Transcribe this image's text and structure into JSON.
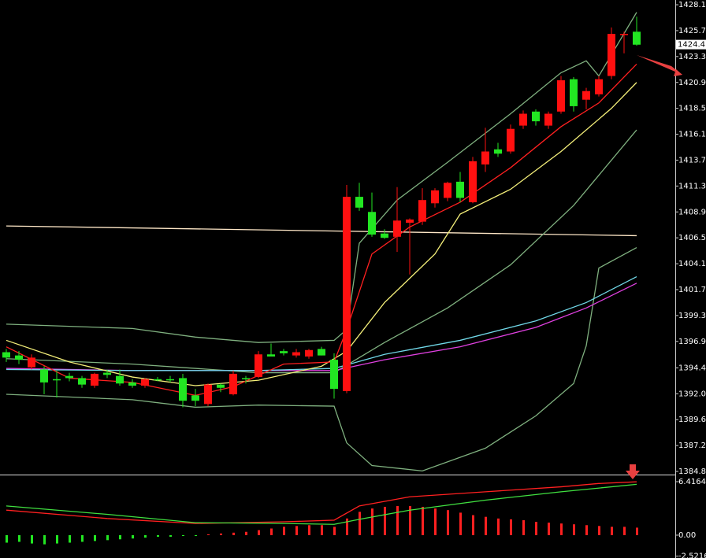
{
  "chart_data": [
    {
      "type": "candlestick",
      "up_color": "#ff1010",
      "down_color": "#22e622",
      "ylim": [
        1384.56,
        1428.54
      ],
      "yticks": [
        {
          "value": 1428.1,
          "label": "1428.10"
        },
        {
          "value": 1425.7,
          "label": "1425.70"
        },
        {
          "value": 1423.3,
          "label": "1423.30"
        },
        {
          "value": 1420.9,
          "label": "1420.90"
        },
        {
          "value": 1418.5,
          "label": "1418.50"
        },
        {
          "value": 1416.1,
          "label": "1416.10"
        },
        {
          "value": 1413.7,
          "label": "1413.70"
        },
        {
          "value": 1411.3,
          "label": "1411.30"
        },
        {
          "value": 1408.9,
          "label": "1408.90"
        },
        {
          "value": 1406.5,
          "label": "1406.50"
        },
        {
          "value": 1404.1,
          "label": "1404.10"
        },
        {
          "value": 1401.7,
          "label": "1401.70"
        },
        {
          "value": 1399.3,
          "label": "1399.30"
        },
        {
          "value": 1396.9,
          "label": "1396.90"
        },
        {
          "value": 1394.45,
          "label": "1394.45"
        },
        {
          "value": 1392.05,
          "label": "1392.05"
        },
        {
          "value": 1389.65,
          "label": "1389.65"
        },
        {
          "value": 1387.25,
          "label": "1387.25"
        },
        {
          "value": 1384.85,
          "label": "1384.85"
        }
      ],
      "last_price": 1424.41,
      "open": [
        1395.9,
        1395.6,
        1394.5,
        1394.3,
        1393.4,
        1393.7,
        1393.5,
        1392.8,
        1394.0,
        1393.7,
        1393.1,
        1392.8,
        1393.4,
        1393.4,
        1393.5,
        1391.9,
        1391.1,
        1392.9,
        1392.0,
        1393.5,
        1393.6,
        1395.7,
        1396.0,
        1395.6,
        1395.5,
        1396.2,
        1395.2,
        1392.3,
        1410.3,
        1408.9,
        1406.9,
        1406.6,
        1407.9,
        1408.0,
        1409.7,
        1410.2,
        1411.7,
        1409.8,
        1413.3,
        1414.7,
        1414.5,
        1416.9,
        1418.2,
        1416.9,
        1418.2,
        1421.2,
        1419.3,
        1419.8,
        1421.5,
        1425.4,
        1425.6
      ],
      "high": [
        1396.2,
        1396.0,
        1395.7,
        1394.6,
        1394.2,
        1394.0,
        1393.7,
        1394.0,
        1394.3,
        1394.3,
        1393.4,
        1393.5,
        1393.6,
        1393.7,
        1393.9,
        1392.5,
        1393.0,
        1393.0,
        1394.2,
        1393.7,
        1396.0,
        1396.7,
        1396.2,
        1396.2,
        1396.2,
        1396.4,
        1395.8,
        1411.4,
        1411.6,
        1410.7,
        1407.3,
        1411.2,
        1408.3,
        1411.1,
        1411.1,
        1411.7,
        1412.6,
        1414.0,
        1416.7,
        1415.3,
        1417.0,
        1418.3,
        1418.4,
        1418.2,
        1421.5,
        1421.4,
        1420.4,
        1421.5,
        1426.0,
        1425.6,
        1427.0
      ],
      "low": [
        1395.0,
        1394.8,
        1394.3,
        1392.0,
        1391.7,
        1393.2,
        1392.6,
        1392.6,
        1393.5,
        1392.8,
        1392.6,
        1392.6,
        1393.2,
        1393.1,
        1390.8,
        1390.9,
        1390.9,
        1392.2,
        1391.9,
        1393.0,
        1393.5,
        1395.5,
        1395.6,
        1395.4,
        1395.3,
        1395.6,
        1391.6,
        1392.1,
        1409.0,
        1406.6,
        1406.4,
        1405.2,
        1403.1,
        1407.7,
        1409.3,
        1409.9,
        1409.8,
        1409.7,
        1412.6,
        1414.0,
        1414.3,
        1416.6,
        1416.9,
        1416.6,
        1418.0,
        1418.2,
        1418.4,
        1419.6,
        1421.2,
        1423.6,
        1424.3
      ],
      "close": [
        1395.4,
        1395.2,
        1395.4,
        1393.1,
        1393.3,
        1393.5,
        1392.9,
        1393.9,
        1393.8,
        1393.0,
        1392.8,
        1393.4,
        1393.3,
        1393.3,
        1391.4,
        1391.4,
        1392.9,
        1392.6,
        1393.9,
        1393.4,
        1395.7,
        1395.5,
        1395.8,
        1395.9,
        1396.1,
        1395.6,
        1392.5,
        1410.3,
        1409.3,
        1406.8,
        1406.5,
        1408.1,
        1408.2,
        1410.0,
        1410.9,
        1411.6,
        1410.2,
        1413.6,
        1414.5,
        1414.3,
        1416.6,
        1418.0,
        1417.3,
        1418.0,
        1421.1,
        1418.7,
        1420.1,
        1421.2,
        1425.4,
        1425.4,
        1424.4
      ],
      "lines": [
        {
          "color": "#ffe8c8",
          "x": [
            0,
            50
          ],
          "values": [
            1407.6,
            1406.7
          ]
        },
        {
          "color": "#7fb07f",
          "x": [
            0,
            10,
            15,
            20,
            26,
            27,
            28,
            31,
            35,
            40,
            44,
            46,
            47,
            50
          ],
          "values": [
            1398.5,
            1398.1,
            1397.3,
            1396.8,
            1397.0,
            1398.0,
            1406.0,
            1410.0,
            1413.5,
            1418.0,
            1421.8,
            1422.9,
            1421.5,
            1427.4
          ]
        },
        {
          "color": "#7fb07f",
          "x": [
            0,
            10,
            20,
            26,
            30,
            35,
            40,
            45,
            50
          ],
          "values": [
            1395.3,
            1394.8,
            1394.0,
            1394.0,
            1396.8,
            1400.0,
            1404.0,
            1409.5,
            1416.5
          ]
        },
        {
          "color": "#7fb07f",
          "x": [
            0,
            10,
            15,
            20,
            26,
            27,
            29,
            33,
            38,
            42,
            45,
            46,
            47,
            50
          ],
          "values": [
            1392.0,
            1391.5,
            1390.8,
            1391.0,
            1390.9,
            1387.5,
            1385.4,
            1384.9,
            1387.0,
            1390.0,
            1393.0,
            1396.5,
            1403.7,
            1405.6
          ]
        },
        {
          "color": "#e040e0",
          "x": [
            0,
            10,
            20,
            26,
            30,
            36,
            42,
            46,
            50
          ],
          "values": [
            1394.4,
            1394.2,
            1394.2,
            1394.2,
            1395.2,
            1396.4,
            1398.2,
            1400.0,
            1402.3
          ]
        },
        {
          "color": "#70d8e8",
          "x": [
            0,
            10,
            20,
            26,
            30,
            36,
            42,
            46,
            50
          ],
          "values": [
            1394.3,
            1394.2,
            1394.2,
            1394.4,
            1395.7,
            1397.0,
            1398.8,
            1400.5,
            1402.9
          ]
        },
        {
          "color": "#f5f07a",
          "x": [
            0,
            5,
            10,
            15,
            20,
            25,
            27,
            30,
            34,
            36,
            40,
            44,
            48,
            50
          ],
          "values": [
            1397.0,
            1395.0,
            1393.6,
            1392.8,
            1393.3,
            1394.6,
            1396.0,
            1400.5,
            1405.0,
            1408.7,
            1411.0,
            1414.5,
            1418.5,
            1420.9
          ]
        },
        {
          "color": "#ff2020",
          "x": [
            0,
            5,
            10,
            15,
            18,
            22,
            26,
            27,
            29,
            32,
            36,
            40,
            44,
            47,
            50
          ],
          "values": [
            1396.4,
            1393.5,
            1393.1,
            1391.9,
            1392.7,
            1394.8,
            1395.0,
            1398.0,
            1405.0,
            1407.5,
            1409.8,
            1413.0,
            1416.8,
            1419.0,
            1422.6
          ]
        }
      ]
    },
    {
      "type": "macd",
      "up_color": "#ff2020",
      "down_color": "#22e622",
      "ylim": [
        -2.74,
        7.08
      ],
      "yticks": [
        {
          "value": 6.4164,
          "label": "6.4164"
        },
        {
          "value": 0,
          "label": "0.00"
        },
        {
          "value": -2.5216,
          "label": "-2.5216"
        }
      ],
      "histogram": [
        -0.9,
        -0.8,
        -1.0,
        -1.1,
        -1.0,
        -0.9,
        -0.8,
        -0.7,
        -0.6,
        -0.5,
        -0.4,
        -0.3,
        -0.2,
        -0.2,
        -0.1,
        -0.1,
        0.1,
        0.2,
        0.3,
        0.4,
        0.6,
        0.8,
        1.0,
        1.1,
        1.2,
        1.2,
        1.0,
        2.0,
        2.8,
        3.2,
        3.4,
        3.5,
        3.5,
        3.4,
        3.2,
        3.0,
        2.7,
        2.4,
        2.2,
        2.0,
        1.9,
        1.8,
        1.6,
        1.5,
        1.4,
        1.3,
        1.2,
        1.1,
        1.0,
        1.0,
        0.9
      ],
      "lines": [
        {
          "color": "#ff2020",
          "x": [
            0,
            8,
            15,
            22,
            26,
            28,
            32,
            38,
            44,
            47,
            50
          ],
          "values": [
            3.0,
            2.0,
            1.4,
            1.6,
            1.8,
            3.5,
            4.6,
            5.2,
            5.8,
            6.2,
            6.4
          ]
        },
        {
          "color": "#40e040",
          "x": [
            0,
            8,
            15,
            22,
            26,
            28,
            32,
            38,
            44,
            50
          ],
          "values": [
            3.5,
            2.5,
            1.5,
            1.4,
            1.3,
            1.9,
            3.0,
            4.2,
            5.2,
            6.1
          ]
        }
      ]
    }
  ]
}
